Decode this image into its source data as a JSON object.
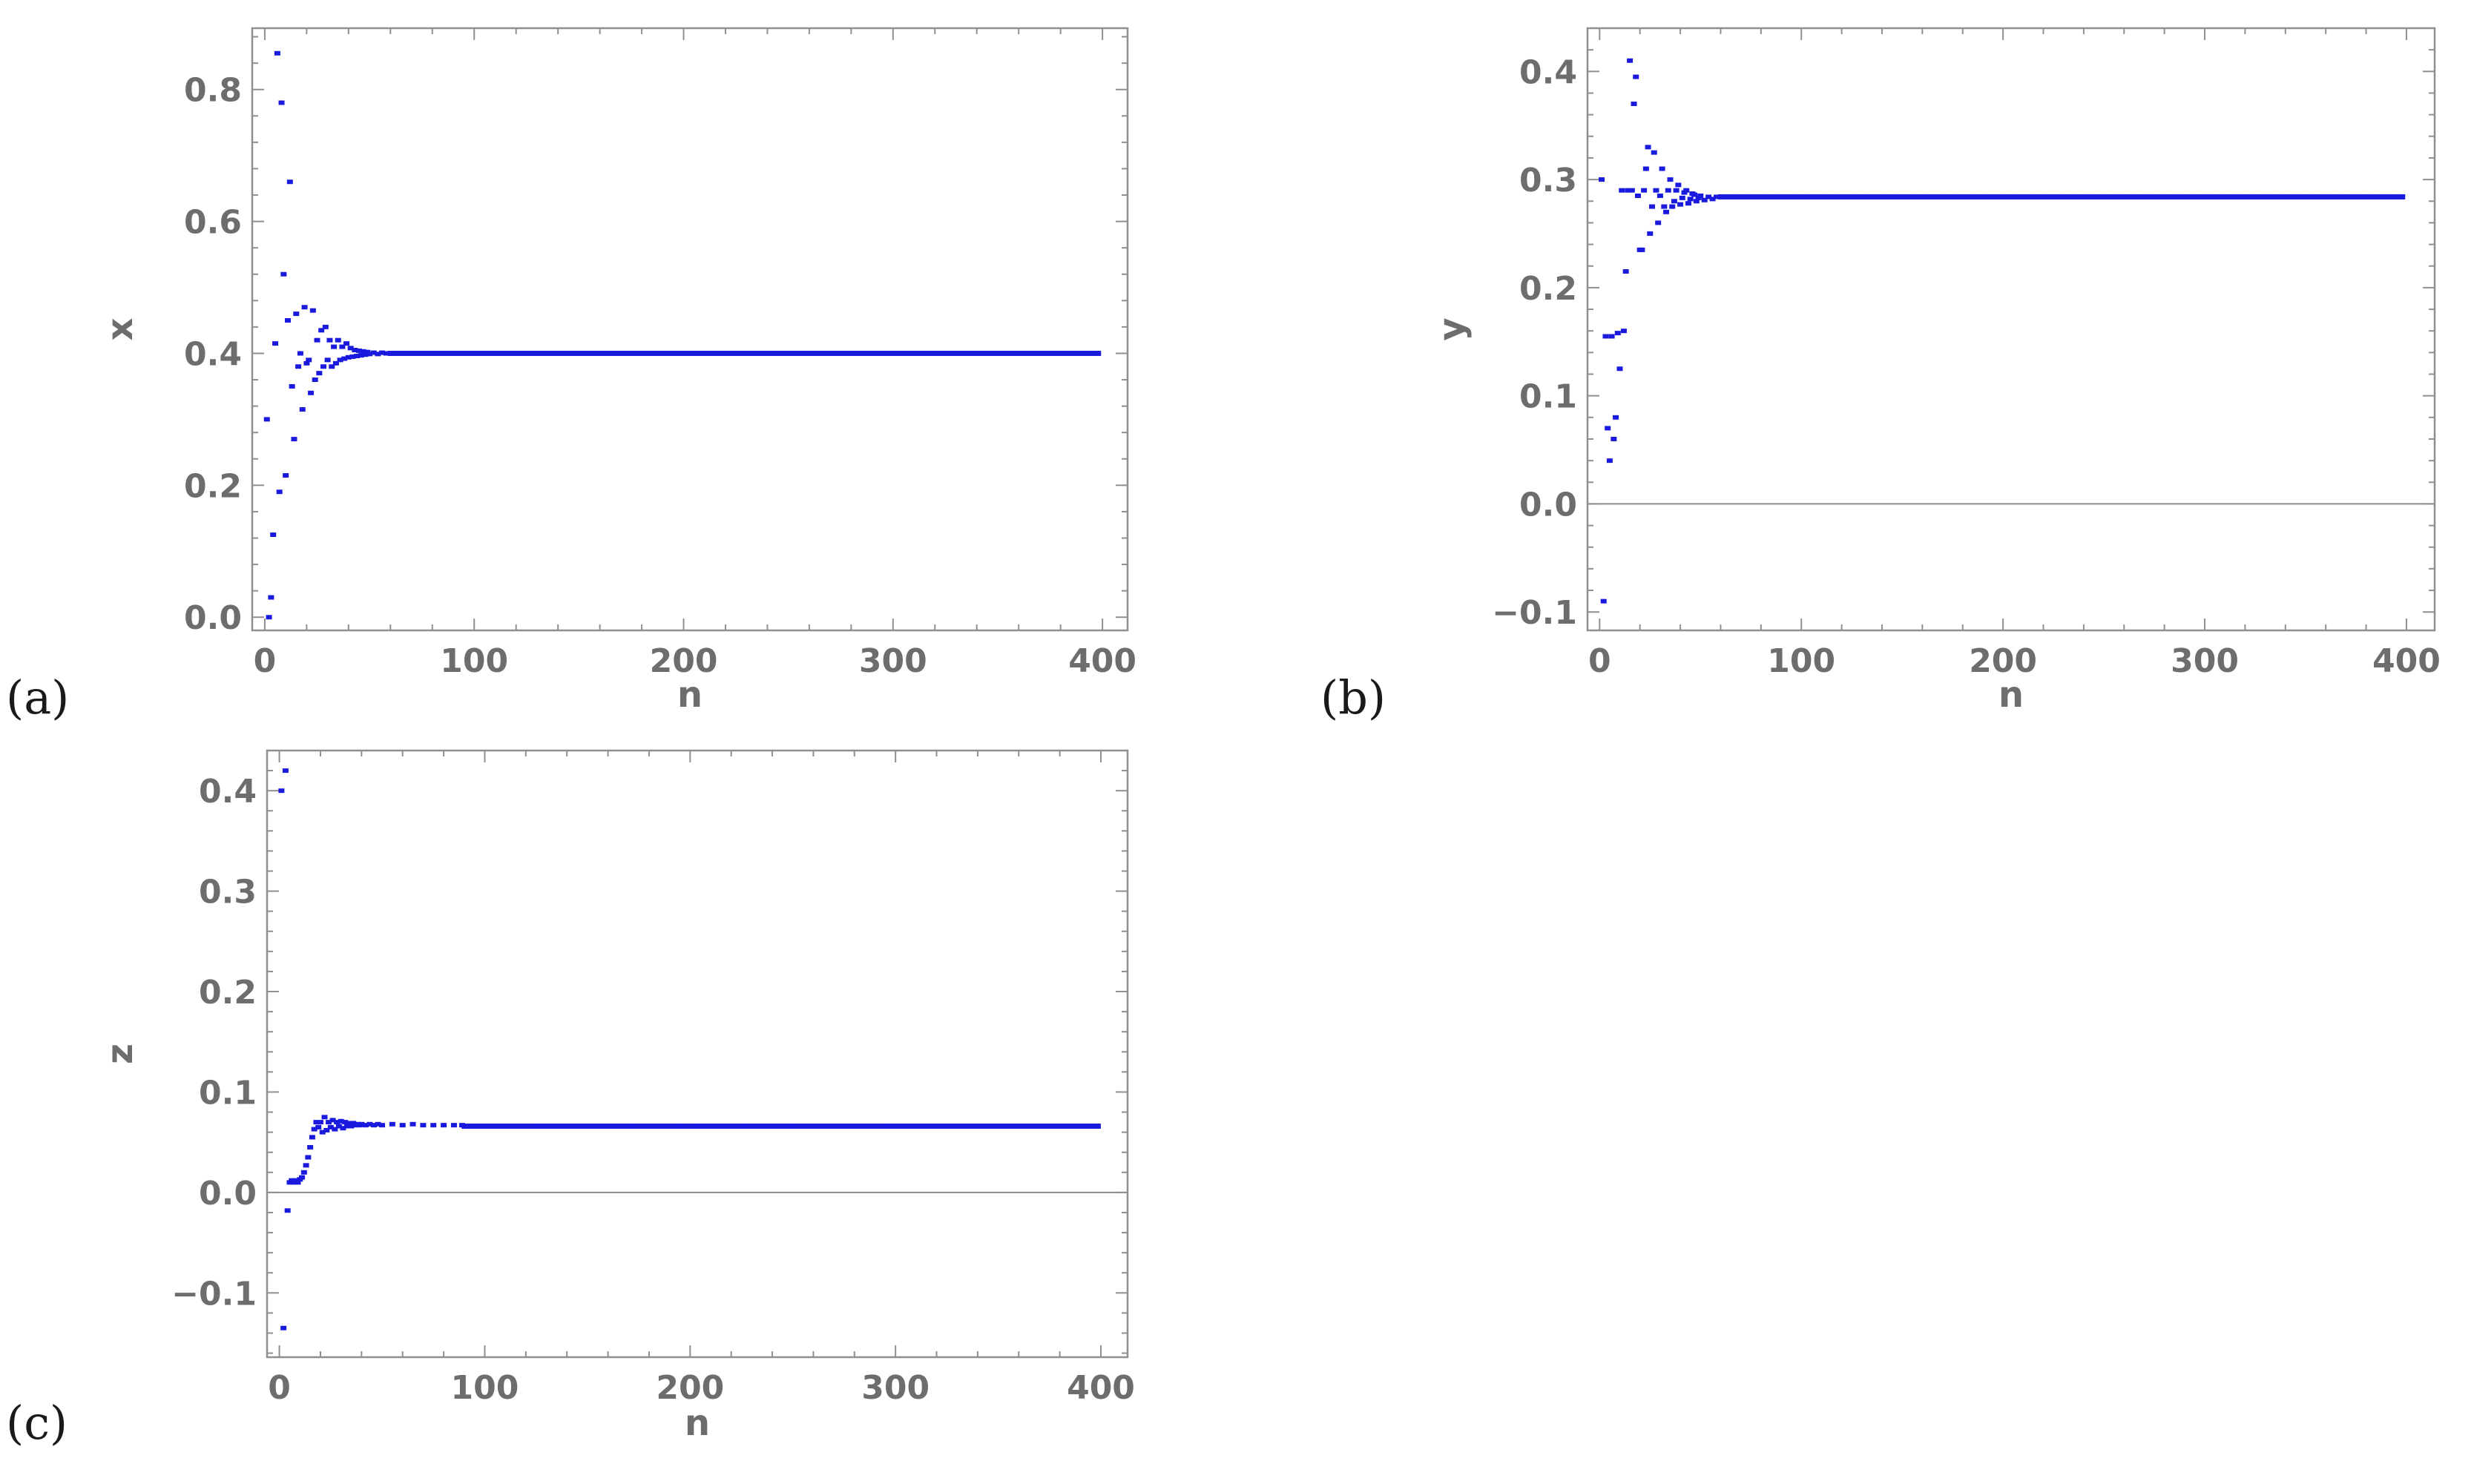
{
  "colors": {
    "points": "#1a1adf",
    "frame": "#8f8f8f",
    "tick_text": "#6d6d6d",
    "axis_line": "#8a8a8a",
    "label_text": "#1a1a1a"
  },
  "chart_data": [
    {
      "type": "scatter",
      "panel_label": "(a)",
      "title": "",
      "xlabel": "n",
      "ylabel": "x",
      "xlim": [
        -6,
        412
      ],
      "ylim": [
        -0.02,
        0.893
      ],
      "xticks": [
        0,
        100,
        200,
        300,
        400
      ],
      "xtick_labels": [
        "0",
        "100",
        "200",
        "300",
        "400"
      ],
      "yticks": [
        0.0,
        0.2,
        0.4,
        0.6,
        0.8
      ],
      "ytick_labels": [
        "0.0",
        "0.2",
        "0.4",
        "0.6",
        "0.8"
      ],
      "zero_line": false,
      "steady_value": 0.4,
      "steady_range": [
        60,
        400
      ],
      "points": [
        [
          1,
          0.3
        ],
        [
          2,
          0.0
        ],
        [
          3,
          0.03
        ],
        [
          4,
          0.125
        ],
        [
          5,
          0.415
        ],
        [
          6,
          0.855
        ],
        [
          7,
          0.19
        ],
        [
          8,
          0.78
        ],
        [
          9,
          0.52
        ],
        [
          10,
          0.215
        ],
        [
          11,
          0.45
        ],
        [
          12,
          0.66
        ],
        [
          13,
          0.35
        ],
        [
          14,
          0.27
        ],
        [
          15,
          0.46
        ],
        [
          16,
          0.38
        ],
        [
          17,
          0.4
        ],
        [
          18,
          0.315
        ],
        [
          19,
          0.47
        ],
        [
          20,
          0.385
        ],
        [
          21,
          0.39
        ],
        [
          22,
          0.34
        ],
        [
          23,
          0.465
        ],
        [
          24,
          0.36
        ],
        [
          25,
          0.42
        ],
        [
          26,
          0.37
        ],
        [
          27,
          0.435
        ],
        [
          28,
          0.38
        ],
        [
          29,
          0.44
        ],
        [
          30,
          0.39
        ],
        [
          31,
          0.42
        ],
        [
          32,
          0.38
        ],
        [
          33,
          0.41
        ],
        [
          34,
          0.385
        ],
        [
          35,
          0.42
        ],
        [
          36,
          0.39
        ],
        [
          37,
          0.41
        ],
        [
          38,
          0.392
        ],
        [
          39,
          0.415
        ],
        [
          40,
          0.394
        ],
        [
          41,
          0.408
        ],
        [
          42,
          0.395
        ],
        [
          43,
          0.405
        ],
        [
          44,
          0.396
        ],
        [
          45,
          0.404
        ],
        [
          46,
          0.397
        ],
        [
          47,
          0.403
        ],
        [
          48,
          0.398
        ],
        [
          49,
          0.402
        ],
        [
          50,
          0.399
        ],
        [
          52,
          0.401
        ],
        [
          54,
          0.399
        ],
        [
          56,
          0.401
        ],
        [
          58,
          0.4
        ]
      ]
    },
    {
      "type": "scatter",
      "panel_label": "(b)",
      "title": "",
      "xlabel": "n",
      "ylabel": "y",
      "xlim": [
        -6,
        414
      ],
      "ylim": [
        -0.117,
        0.44
      ],
      "xticks": [
        0,
        100,
        200,
        300,
        400
      ],
      "xtick_labels": [
        "0",
        "100",
        "200",
        "300",
        "400"
      ],
      "yticks": [
        -0.1,
        0.0,
        0.1,
        0.2,
        0.3,
        0.4
      ],
      "ytick_labels": [
        "−0.1",
        "0.0",
        "0.1",
        "0.2",
        "0.3",
        "0.4"
      ],
      "zero_line": true,
      "steady_value": 0.284,
      "steady_range": [
        60,
        400
      ],
      "points": [
        [
          1,
          0.3
        ],
        [
          2,
          -0.09
        ],
        [
          3,
          0.155
        ],
        [
          4,
          0.07
        ],
        [
          5,
          0.04
        ],
        [
          6,
          0.155
        ],
        [
          7,
          0.06
        ],
        [
          8,
          0.08
        ],
        [
          9,
          0.158
        ],
        [
          10,
          0.125
        ],
        [
          11,
          0.29
        ],
        [
          12,
          0.16
        ],
        [
          13,
          0.215
        ],
        [
          14,
          0.29
        ],
        [
          15,
          0.41
        ],
        [
          16,
          0.29
        ],
        [
          17,
          0.37
        ],
        [
          18,
          0.395
        ],
        [
          19,
          0.285
        ],
        [
          20,
          0.235
        ],
        [
          21,
          0.235
        ],
        [
          22,
          0.29
        ],
        [
          23,
          0.31
        ],
        [
          24,
          0.33
        ],
        [
          25,
          0.25
        ],
        [
          26,
          0.275
        ],
        [
          27,
          0.325
        ],
        [
          28,
          0.29
        ],
        [
          29,
          0.26
        ],
        [
          30,
          0.285
        ],
        [
          31,
          0.31
        ],
        [
          32,
          0.275
        ],
        [
          33,
          0.27
        ],
        [
          34,
          0.29
        ],
        [
          35,
          0.3
        ],
        [
          36,
          0.275
        ],
        [
          37,
          0.28
        ],
        [
          38,
          0.29
        ],
        [
          39,
          0.295
        ],
        [
          40,
          0.277
        ],
        [
          41,
          0.283
        ],
        [
          42,
          0.288
        ],
        [
          43,
          0.29
        ],
        [
          44,
          0.278
        ],
        [
          45,
          0.282
        ],
        [
          46,
          0.287
        ],
        [
          47,
          0.286
        ],
        [
          48,
          0.28
        ],
        [
          49,
          0.283
        ],
        [
          50,
          0.285
        ],
        [
          52,
          0.281
        ],
        [
          54,
          0.284
        ],
        [
          56,
          0.282
        ],
        [
          58,
          0.284
        ]
      ]
    },
    {
      "type": "scatter",
      "panel_label": "(c)",
      "title": "",
      "xlabel": "n",
      "ylabel": "z",
      "xlim": [
        -6,
        413
      ],
      "ylim": [
        -0.164,
        0.44
      ],
      "xticks": [
        0,
        100,
        200,
        300,
        400
      ],
      "xtick_labels": [
        "0",
        "100",
        "200",
        "300",
        "400"
      ],
      "yticks": [
        -0.1,
        0.0,
        0.1,
        0.2,
        0.3,
        0.4
      ],
      "ytick_labels": [
        "−0.1",
        "0.0",
        "0.1",
        "0.2",
        "0.3",
        "0.4"
      ],
      "zero_line": true,
      "steady_value": 0.066,
      "steady_range": [
        90,
        400
      ],
      "points": [
        [
          1,
          0.4
        ],
        [
          2,
          -0.135
        ],
        [
          3,
          0.42
        ],
        [
          4,
          -0.018
        ],
        [
          5,
          0.01
        ],
        [
          6,
          0.012
        ],
        [
          7,
          0.01
        ],
        [
          8,
          0.012
        ],
        [
          9,
          0.01
        ],
        [
          10,
          0.013
        ],
        [
          11,
          0.015
        ],
        [
          12,
          0.02
        ],
        [
          13,
          0.027
        ],
        [
          14,
          0.035
        ],
        [
          15,
          0.045
        ],
        [
          16,
          0.055
        ],
        [
          17,
          0.063
        ],
        [
          18,
          0.07
        ],
        [
          19,
          0.065
        ],
        [
          20,
          0.07
        ],
        [
          21,
          0.06
        ],
        [
          22,
          0.075
        ],
        [
          23,
          0.062
        ],
        [
          24,
          0.07
        ],
        [
          25,
          0.065
        ],
        [
          26,
          0.072
        ],
        [
          27,
          0.063
        ],
        [
          28,
          0.07
        ],
        [
          29,
          0.066
        ],
        [
          30,
          0.071
        ],
        [
          31,
          0.064
        ],
        [
          32,
          0.07
        ],
        [
          33,
          0.066
        ],
        [
          34,
          0.069
        ],
        [
          35,
          0.066
        ],
        [
          36,
          0.069
        ],
        [
          37,
          0.067
        ],
        [
          38,
          0.068
        ],
        [
          39,
          0.067
        ],
        [
          40,
          0.068
        ],
        [
          42,
          0.067
        ],
        [
          44,
          0.068
        ],
        [
          46,
          0.067
        ],
        [
          48,
          0.068
        ],
        [
          50,
          0.067
        ],
        [
          55,
          0.068
        ],
        [
          60,
          0.067
        ],
        [
          65,
          0.068
        ],
        [
          70,
          0.067
        ],
        [
          75,
          0.067
        ],
        [
          80,
          0.067
        ],
        [
          85,
          0.067
        ],
        [
          89,
          0.067
        ]
      ]
    }
  ]
}
